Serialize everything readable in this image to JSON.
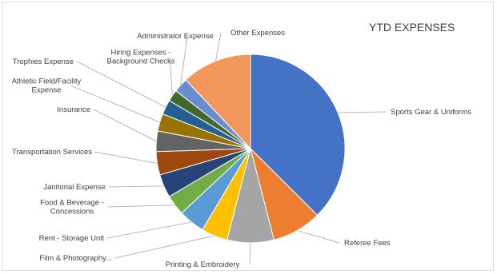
{
  "chart_data": {
    "type": "pie",
    "title": "YTD EXPENSES",
    "slices": [
      {
        "label": "Sports Gear & Uniforms",
        "value": 37.5,
        "color": "#4472C4"
      },
      {
        "label": "Referee Fees",
        "value": 8.5,
        "color": "#ED7D31"
      },
      {
        "label": "Printing & Embroidery",
        "value": 8.0,
        "color": "#A5A5A5"
      },
      {
        "label": "Film & Photography...",
        "value": 4.5,
        "color": "#FFC000"
      },
      {
        "label": "Rent - Storage Unit",
        "value": 4.5,
        "color": "#5B9BD5"
      },
      {
        "label": "Food & Beverage - Concessions",
        "value": 3.5,
        "color": "#70AD47"
      },
      {
        "label": "Janitorial Expense",
        "value": 4.0,
        "color": "#264478"
      },
      {
        "label": "Transportation Services",
        "value": 4.0,
        "color": "#9E480E"
      },
      {
        "label": "Insurance",
        "value": 3.5,
        "color": "#636363"
      },
      {
        "label": "Athletic Field/Facility Expense",
        "value": 3.0,
        "color": "#997300"
      },
      {
        "label": "Trophies Expense",
        "value": 2.5,
        "color": "#255E91"
      },
      {
        "label": "Hiring Expenses - Background Checks",
        "value": 2.0,
        "color": "#43682B"
      },
      {
        "label": "Administrator Expense",
        "value": 2.5,
        "color": "#698ED0"
      },
      {
        "label": "Other Expenses",
        "value": 12.0,
        "color": "#F1975A"
      }
    ]
  }
}
